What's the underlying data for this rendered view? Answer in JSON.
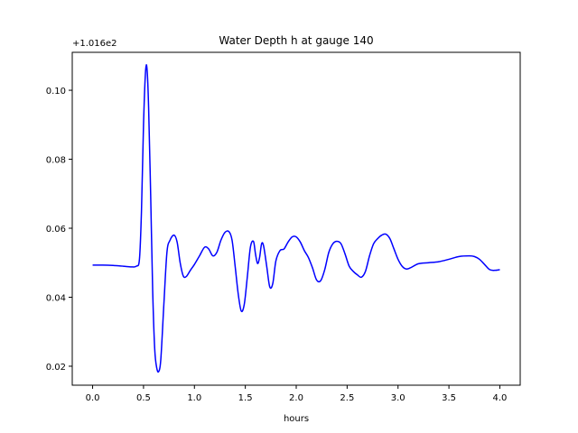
{
  "chart_data": {
    "type": "line",
    "title": "Water Depth h at gauge 140",
    "xlabel": "hours",
    "ylabel": "",
    "offset_label": "+1.016e2",
    "xlim": [
      -0.2,
      4.2
    ],
    "ylim": [
      0.0145,
      0.111
    ],
    "x_ticks": [
      0.0,
      0.5,
      1.0,
      1.5,
      2.0,
      2.5,
      3.0,
      3.5,
      4.0
    ],
    "x_tick_labels": [
      "0.0",
      "0.5",
      "1.0",
      "1.5",
      "2.0",
      "2.5",
      "3.0",
      "3.5",
      "4.0"
    ],
    "y_ticks": [
      0.02,
      0.04,
      0.06,
      0.08,
      0.1
    ],
    "y_tick_labels": [
      "0.02",
      "0.04",
      "0.06",
      "0.08",
      "0.10"
    ],
    "grid": false,
    "series": [
      {
        "color": "#0000ff",
        "x": [
          0.0,
          0.1,
          0.2,
          0.3,
          0.38,
          0.43,
          0.46,
          0.48,
          0.5,
          0.52,
          0.535,
          0.55,
          0.57,
          0.59,
          0.61,
          0.63,
          0.65,
          0.67,
          0.7,
          0.73,
          0.76,
          0.8,
          0.83,
          0.86,
          0.89,
          0.92,
          0.96,
          1.0,
          1.05,
          1.1,
          1.14,
          1.18,
          1.22,
          1.26,
          1.3,
          1.34,
          1.37,
          1.4,
          1.43,
          1.46,
          1.49,
          1.52,
          1.55,
          1.58,
          1.6,
          1.62,
          1.64,
          1.66,
          1.68,
          1.71,
          1.74,
          1.77,
          1.8,
          1.84,
          1.88,
          1.92,
          1.96,
          2.0,
          2.04,
          2.08,
          2.12,
          2.16,
          2.2,
          2.24,
          2.28,
          2.32,
          2.36,
          2.4,
          2.44,
          2.48,
          2.52,
          2.56,
          2.6,
          2.64,
          2.68,
          2.72,
          2.76,
          2.8,
          2.84,
          2.88,
          2.92,
          2.96,
          3.0,
          3.04,
          3.08,
          3.12,
          3.2,
          3.3,
          3.4,
          3.5,
          3.6,
          3.7,
          3.75,
          3.8,
          3.85,
          3.9,
          3.95,
          4.0
        ],
        "values": [
          0.0493,
          0.0493,
          0.0492,
          0.049,
          0.0488,
          0.049,
          0.051,
          0.065,
          0.09,
          0.1055,
          0.106,
          0.095,
          0.07,
          0.042,
          0.025,
          0.0195,
          0.0185,
          0.022,
          0.038,
          0.053,
          0.0565,
          0.058,
          0.056,
          0.05,
          0.0462,
          0.046,
          0.0478,
          0.0495,
          0.052,
          0.0545,
          0.054,
          0.052,
          0.053,
          0.0565,
          0.0588,
          0.059,
          0.0565,
          0.049,
          0.041,
          0.036,
          0.038,
          0.046,
          0.0545,
          0.0562,
          0.0525,
          0.0498,
          0.0515,
          0.0555,
          0.0548,
          0.049,
          0.043,
          0.044,
          0.0505,
          0.0535,
          0.054,
          0.056,
          0.0575,
          0.0575,
          0.056,
          0.0535,
          0.0515,
          0.0485,
          0.045,
          0.0448,
          0.048,
          0.053,
          0.0555,
          0.0562,
          0.0555,
          0.0525,
          0.049,
          0.0475,
          0.0465,
          0.0458,
          0.0475,
          0.052,
          0.0555,
          0.057,
          0.058,
          0.0583,
          0.057,
          0.054,
          0.051,
          0.049,
          0.0482,
          0.0485,
          0.0497,
          0.05,
          0.0503,
          0.051,
          0.0518,
          0.052,
          0.0518,
          0.051,
          0.0495,
          0.048,
          0.0478,
          0.048
        ]
      }
    ]
  }
}
